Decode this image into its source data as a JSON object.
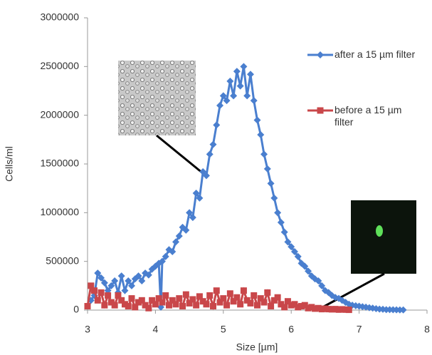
{
  "chart_data": {
    "type": "line",
    "x_label": "Size [µm]",
    "y_label": "Cells/ml",
    "xlim": [
      3,
      8
    ],
    "xticks": [
      3,
      4,
      5,
      6,
      7,
      8
    ],
    "ylim": [
      0,
      3000000
    ],
    "yticks": [
      0,
      500000,
      1000000,
      1500000,
      2000000,
      2500000,
      3000000
    ],
    "grid": false,
    "legend": "right",
    "series": [
      {
        "name": "after a 15 µm filter",
        "color": "#4a7fcf",
        "marker": "diamond",
        "x": [
          3.05,
          3.1,
          3.15,
          3.2,
          3.25,
          3.3,
          3.35,
          3.4,
          3.45,
          3.5,
          3.55,
          3.6,
          3.65,
          3.7,
          3.75,
          3.8,
          3.85,
          3.9,
          3.95,
          4.0,
          4.05,
          4.08,
          4.1,
          4.15,
          4.2,
          4.25,
          4.3,
          4.35,
          4.4,
          4.45,
          4.5,
          4.55,
          4.6,
          4.65,
          4.7,
          4.75,
          4.8,
          4.85,
          4.9,
          4.95,
          5.0,
          5.05,
          5.1,
          5.15,
          5.2,
          5.25,
          5.3,
          5.35,
          5.4,
          5.45,
          5.5,
          5.55,
          5.6,
          5.65,
          5.7,
          5.75,
          5.8,
          5.85,
          5.9,
          5.95,
          6.0,
          6.05,
          6.1,
          6.15,
          6.2,
          6.25,
          6.3,
          6.35,
          6.4,
          6.45,
          6.5,
          6.55,
          6.6,
          6.65,
          6.7,
          6.75,
          6.8,
          6.85,
          6.9,
          6.95,
          7.0,
          7.05,
          7.1,
          7.15,
          7.2,
          7.25,
          7.3,
          7.35,
          7.4,
          7.45,
          7.5,
          7.55,
          7.6,
          7.65
        ],
        "values": [
          100000,
          150000,
          380000,
          330000,
          280000,
          200000,
          250000,
          300000,
          180000,
          350000,
          200000,
          300000,
          250000,
          320000,
          350000,
          300000,
          380000,
          360000,
          420000,
          450000,
          480000,
          30000,
          500000,
          550000,
          620000,
          600000,
          700000,
          760000,
          850000,
          820000,
          1000000,
          950000,
          1200000,
          1150000,
          1420000,
          1380000,
          1600000,
          1700000,
          1900000,
          2100000,
          2200000,
          2150000,
          2350000,
          2200000,
          2450000,
          2300000,
          2500000,
          2200000,
          2420000,
          2150000,
          1950000,
          1800000,
          1600000,
          1450000,
          1300000,
          1150000,
          1000000,
          900000,
          800000,
          700000,
          650000,
          600000,
          550000,
          480000,
          450000,
          400000,
          350000,
          320000,
          300000,
          250000,
          200000,
          180000,
          150000,
          130000,
          120000,
          100000,
          80000,
          60000,
          50000,
          45000,
          40000,
          35000,
          30000,
          25000,
          20000,
          15000,
          10000,
          8000,
          5000,
          5000,
          4000,
          3000,
          2000,
          2000
        ]
      },
      {
        "name": "before a 15 µm filter",
        "color": "#c9474a",
        "marker": "square",
        "x": [
          3.0,
          3.05,
          3.1,
          3.15,
          3.2,
          3.25,
          3.3,
          3.35,
          3.4,
          3.45,
          3.5,
          3.55,
          3.6,
          3.65,
          3.7,
          3.75,
          3.8,
          3.85,
          3.9,
          3.95,
          4.0,
          4.05,
          4.1,
          4.15,
          4.2,
          4.25,
          4.3,
          4.35,
          4.4,
          4.45,
          4.5,
          4.55,
          4.6,
          4.65,
          4.7,
          4.75,
          4.8,
          4.85,
          4.9,
          4.95,
          5.0,
          5.05,
          5.1,
          5.15,
          5.2,
          5.25,
          5.3,
          5.35,
          5.4,
          5.45,
          5.5,
          5.55,
          5.6,
          5.65,
          5.7,
          5.75,
          5.8,
          5.85,
          5.9,
          5.95,
          6.0,
          6.05,
          6.1,
          6.15,
          6.2,
          6.25,
          6.3,
          6.35,
          6.4,
          6.45,
          6.5,
          6.55,
          6.6,
          6.65,
          6.7,
          6.75,
          6.8,
          6.85
        ],
        "values": [
          40000,
          250000,
          200000,
          100000,
          180000,
          50000,
          150000,
          80000,
          50000,
          150000,
          100000,
          60000,
          40000,
          120000,
          30000,
          80000,
          100000,
          50000,
          20000,
          100000,
          60000,
          120000,
          80000,
          150000,
          50000,
          100000,
          60000,
          120000,
          40000,
          160000,
          70000,
          110000,
          50000,
          140000,
          90000,
          60000,
          150000,
          40000,
          200000,
          80000,
          120000,
          50000,
          170000,
          90000,
          130000,
          60000,
          200000,
          100000,
          70000,
          150000,
          50000,
          120000,
          80000,
          180000,
          40000,
          100000,
          130000,
          60000,
          30000,
          90000,
          50000,
          60000,
          30000,
          40000,
          50000,
          20000,
          30000,
          15000,
          20000,
          10000,
          15000,
          10000,
          8000,
          10000,
          5000,
          8000,
          5000,
          3000
        ]
      }
    ]
  }
}
